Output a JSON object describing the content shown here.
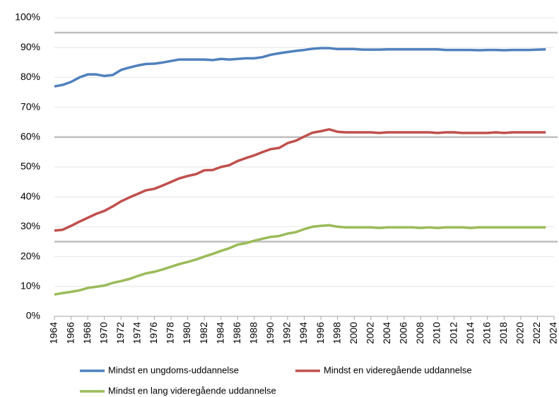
{
  "chart_data": {
    "type": "line",
    "x": [
      1964,
      1965,
      1966,
      1967,
      1968,
      1969,
      1970,
      1971,
      1972,
      1973,
      1974,
      1975,
      1976,
      1977,
      1978,
      1979,
      1980,
      1981,
      1982,
      1983,
      1984,
      1985,
      1986,
      1987,
      1988,
      1989,
      1990,
      1991,
      1992,
      1993,
      1994,
      1995,
      1996,
      1997,
      1998,
      1999,
      2000,
      2001,
      2002,
      2003,
      2004,
      2005,
      2006,
      2007,
      2008,
      2009,
      2010,
      2011,
      2012,
      2013,
      2014,
      2015,
      2016,
      2017,
      2018,
      2019,
      2020,
      2021,
      2022,
      2023
    ],
    "series": [
      {
        "name": "Mindst en ungdoms-uddannelse",
        "color": "#4f81bd",
        "values": [
          77,
          77.5,
          78.5,
          80,
          81,
          81,
          80.5,
          80.8,
          82.5,
          83.3,
          84,
          84.5,
          84.6,
          85,
          85.5,
          86,
          86,
          86,
          86,
          85.8,
          86.2,
          86,
          86.2,
          86.4,
          86.4,
          86.8,
          87.6,
          88.1,
          88.5,
          88.9,
          89.2,
          89.6,
          89.8,
          89.8,
          89.5,
          89.5,
          89.5,
          89.3,
          89.3,
          89.3,
          89.4,
          89.4,
          89.4,
          89.4,
          89.4,
          89.4,
          89.4,
          89.2,
          89.2,
          89.2,
          89.2,
          89.1,
          89.2,
          89.2,
          89.1,
          89.2,
          89.2,
          89.2,
          89.3,
          89.4
        ]
      },
      {
        "name": "Mindst en videregående uddannelse",
        "color": "#c0504d",
        "values": [
          28.7,
          29,
          30.3,
          31.7,
          33,
          34.3,
          35.3,
          36.8,
          38.5,
          39.8,
          41,
          42.2,
          42.7,
          43.8,
          45,
          46.2,
          47,
          47.6,
          48.9,
          49,
          50,
          50.6,
          52,
          53,
          53.9,
          55,
          56,
          56.4,
          58,
          58.8,
          60.2,
          61.5,
          62,
          62.6,
          61.8,
          61.6,
          61.6,
          61.6,
          61.6,
          61.4,
          61.6,
          61.6,
          61.6,
          61.6,
          61.6,
          61.6,
          61.4,
          61.6,
          61.6,
          61.4,
          61.4,
          61.4,
          61.4,
          61.6,
          61.4,
          61.6,
          61.6,
          61.6,
          61.6,
          61.6
        ]
      },
      {
        "name": "Mindst en lang videregående uddannelse",
        "color": "#9bbb59",
        "values": [
          7.3,
          7.8,
          8.2,
          8.7,
          9.5,
          9.9,
          10.3,
          11.2,
          11.8,
          12.5,
          13.5,
          14.4,
          14.9,
          15.7,
          16.6,
          17.5,
          18.2,
          19,
          20,
          20.9,
          21.9,
          22.8,
          24,
          24.5,
          25.3,
          26,
          26.6,
          26.9,
          27.7,
          28.2,
          29.2,
          30,
          30.3,
          30.5,
          30,
          29.8,
          29.8,
          29.8,
          29.8,
          29.6,
          29.8,
          29.8,
          29.8,
          29.8,
          29.6,
          29.8,
          29.6,
          29.8,
          29.8,
          29.8,
          29.6,
          29.8,
          29.8,
          29.8,
          29.8,
          29.8,
          29.8,
          29.8,
          29.8,
          29.8
        ]
      }
    ],
    "xlim": [
      1964,
      2024
    ],
    "xticks": [
      1964,
      1966,
      1968,
      1970,
      1972,
      1974,
      1976,
      1978,
      1980,
      1982,
      1984,
      1986,
      1988,
      1990,
      1992,
      1994,
      1996,
      1998,
      2000,
      2002,
      2004,
      2006,
      2008,
      2010,
      2012,
      2014,
      2016,
      2018,
      2020,
      2022,
      2024
    ],
    "ylim": [
      0,
      100
    ],
    "yticks": [
      {
        "value": 0,
        "label": "0%"
      },
      {
        "value": 10,
        "label": "10%"
      },
      {
        "value": 20,
        "label": "20%"
      },
      {
        "value": 30,
        "label": "30%"
      },
      {
        "value": 40,
        "label": "40%"
      },
      {
        "value": 50,
        "label": "50%"
      },
      {
        "value": 60,
        "label": "60%"
      },
      {
        "value": 70,
        "label": "70%"
      },
      {
        "value": 80,
        "label": "80%"
      },
      {
        "value": 90,
        "label": "90%"
      },
      {
        "value": 100,
        "label": "100%"
      }
    ],
    "reference_lines": [
      95,
      60,
      25
    ],
    "grid": true
  }
}
